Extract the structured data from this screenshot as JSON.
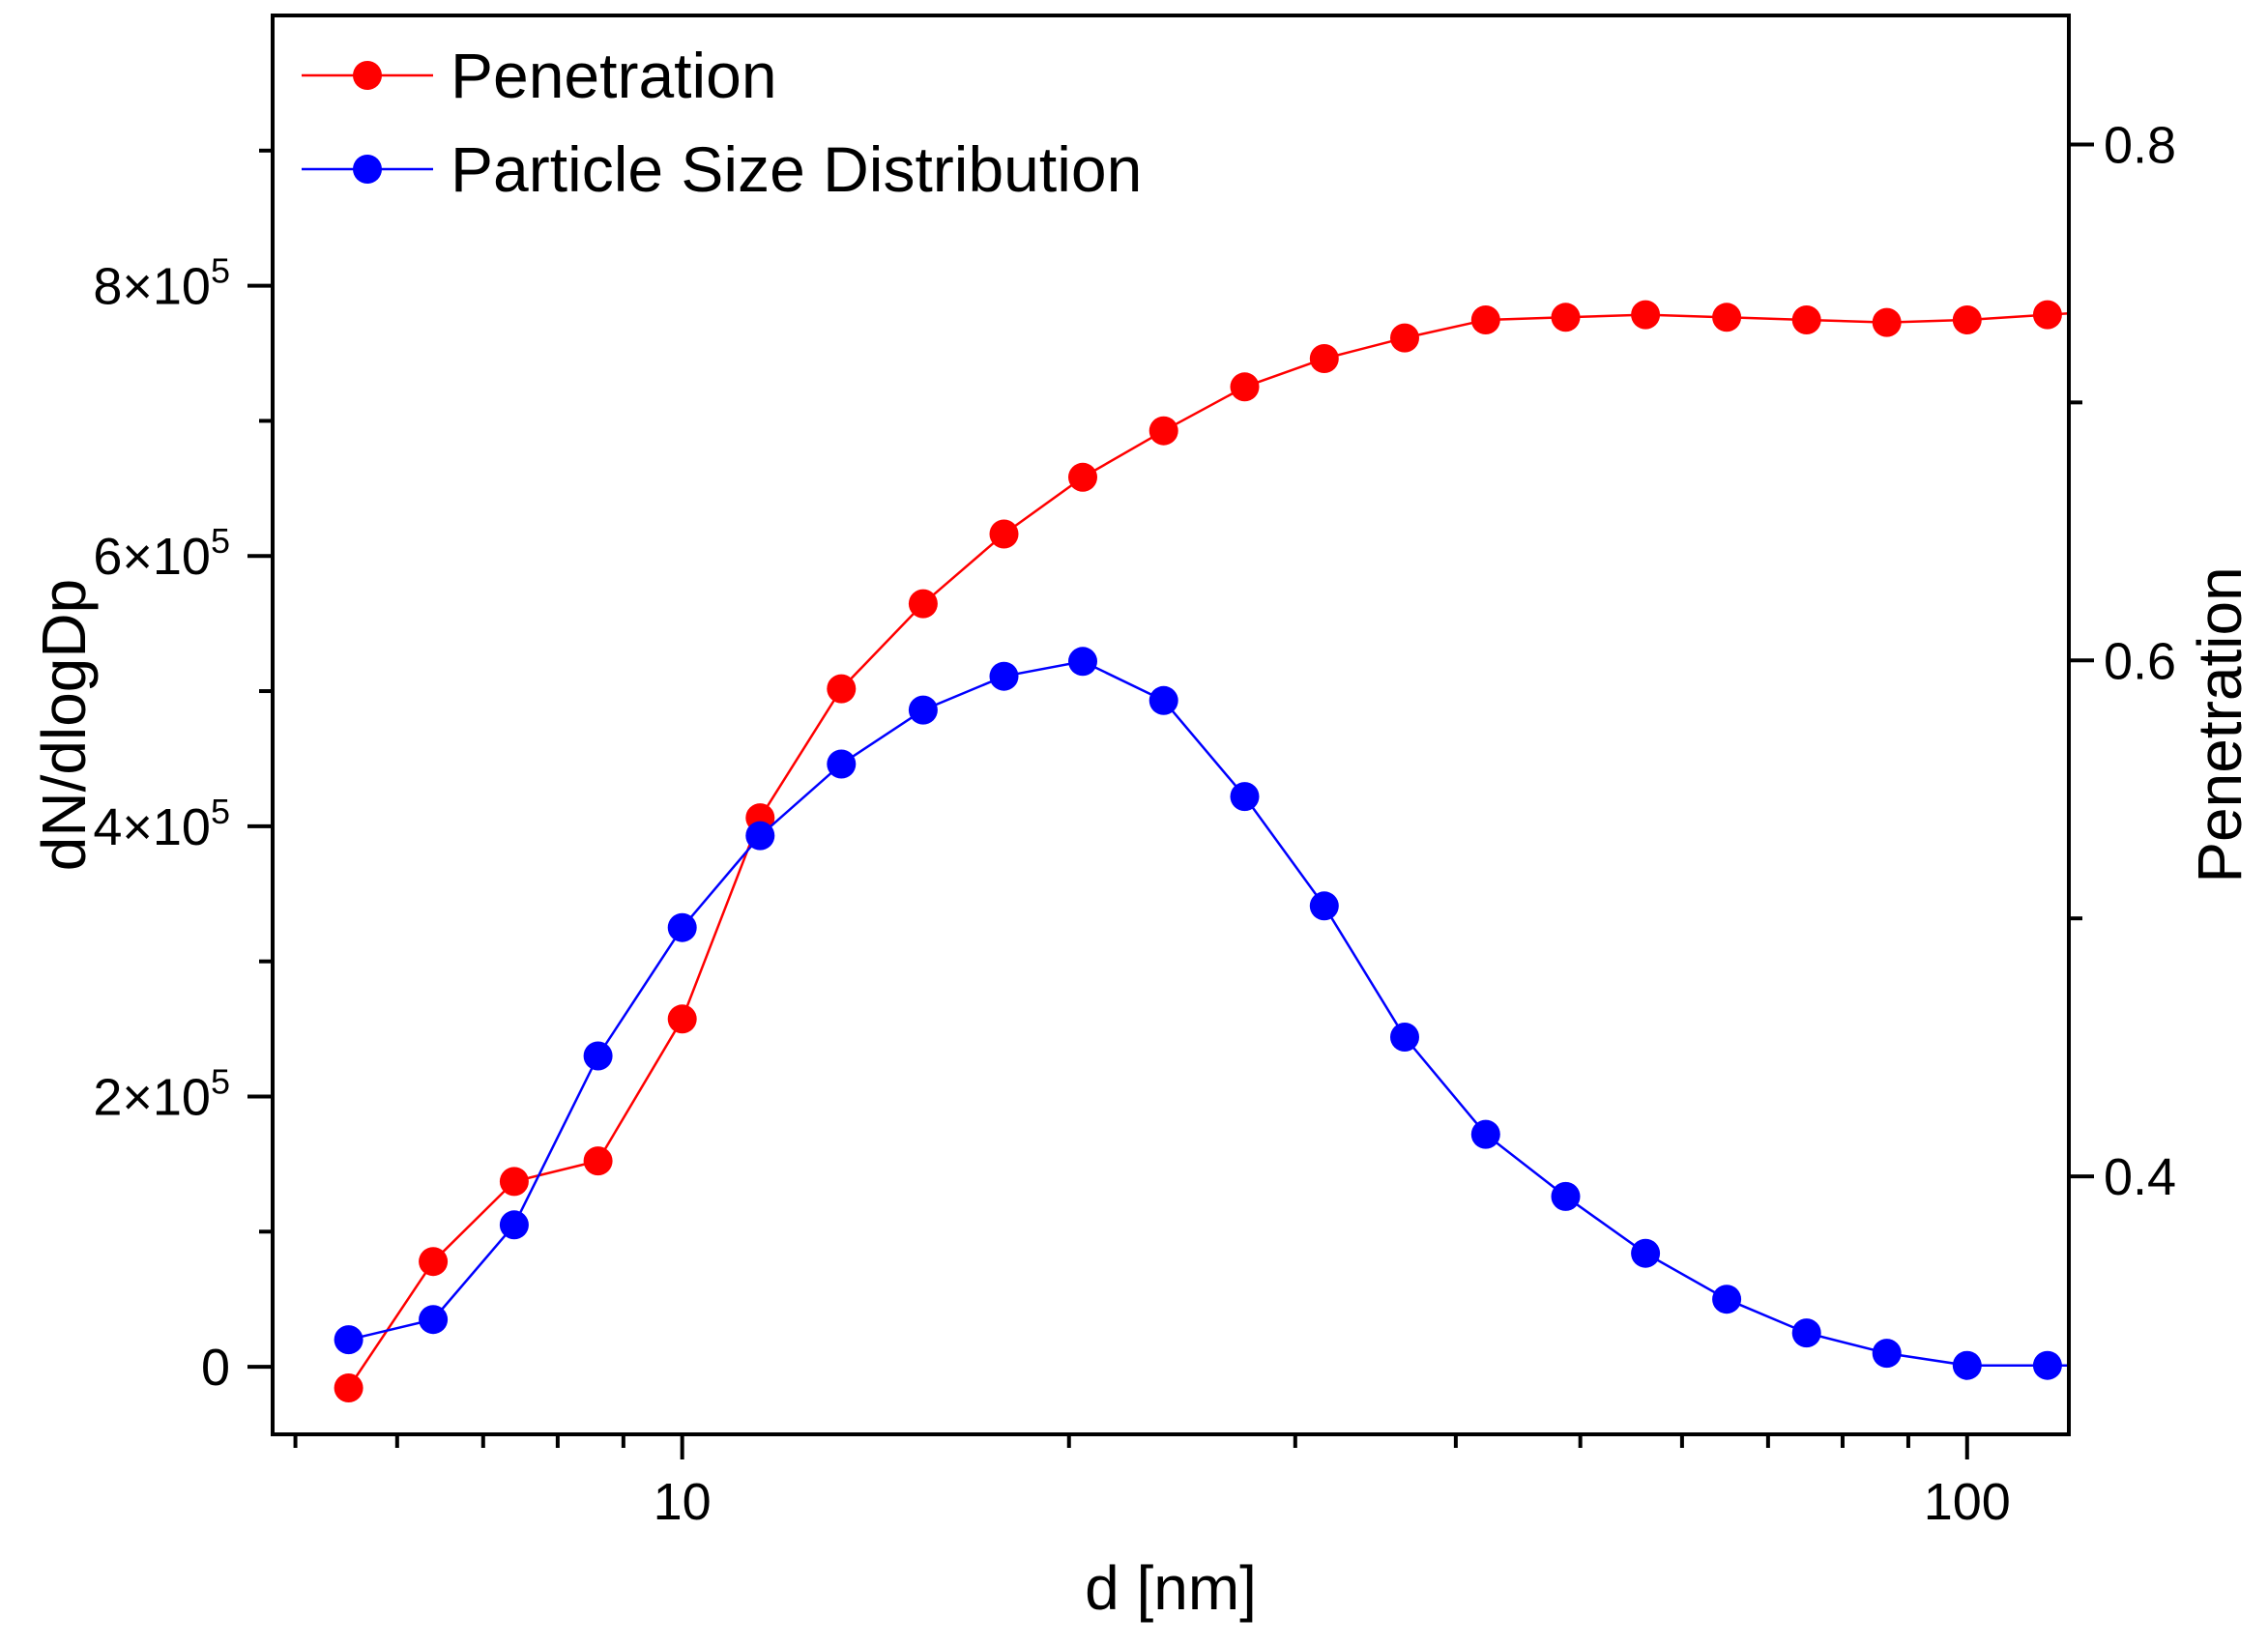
{
  "chart_data": {
    "type": "line",
    "title": "",
    "xlabel": "d [nm]",
    "ylabel_left": "dN/dlogDp",
    "ylabel_right": "Penetration",
    "x_scale": "log",
    "xlim": [
      4.8,
      120
    ],
    "ylim_left": [
      -50000,
      1000000
    ],
    "ylim_right": [
      0.3,
      0.85
    ],
    "x_tick_labels": [
      "10",
      "100"
    ],
    "x_tick_values": [
      10,
      100
    ],
    "y_left_ticks": [
      {
        "value": 0,
        "mantissa": "0",
        "exponent": ""
      },
      {
        "value": 200000,
        "mantissa": "2×10",
        "exponent": "5"
      },
      {
        "value": 400000,
        "mantissa": "4×10",
        "exponent": "5"
      },
      {
        "value": 600000,
        "mantissa": "6×10",
        "exponent": "5"
      },
      {
        "value": 800000,
        "mantissa": "8×10",
        "exponent": "5"
      }
    ],
    "y_left_minor": [
      100000,
      300000,
      500000,
      700000,
      900000
    ],
    "y_right_ticks": [
      {
        "value": 0.4,
        "label": "0.4"
      },
      {
        "value": 0.6,
        "label": "0.6"
      },
      {
        "value": 0.8,
        "label": "0.8"
      }
    ],
    "y_right_minor": [
      0.5,
      0.7
    ],
    "legend_position": "top-left",
    "series": [
      {
        "name": "Penetration",
        "axis": "right",
        "color": "#ff0000",
        "x": [
          5.5,
          6.4,
          7.4,
          8.6,
          10.0,
          11.5,
          13.3,
          15.4,
          17.8,
          20.5,
          23.7,
          27.4,
          31.6,
          36.5,
          42.2,
          48.7,
          56.2,
          65.0,
          75.0,
          86.6,
          100.0,
          115.5
        ],
        "values": [
          0.318,
          0.367,
          0.398,
          0.406,
          0.461,
          0.539,
          0.589,
          0.622,
          0.649,
          0.671,
          0.689,
          0.706,
          0.717,
          0.725,
          0.732,
          0.733,
          0.734,
          0.733,
          0.732,
          0.731,
          0.732,
          0.734
        ]
      },
      {
        "name": "Particle Size Distribution",
        "axis": "left",
        "color": "#0000ff",
        "x": [
          5.5,
          6.4,
          7.4,
          8.6,
          10.0,
          11.5,
          13.3,
          15.4,
          17.8,
          20.5,
          23.7,
          27.4,
          31.6,
          36.5,
          42.2,
          48.7,
          56.2,
          65.0,
          75.0,
          86.6,
          100.0,
          115.5
        ],
        "values": [
          20000,
          35000,
          105000,
          230000,
          325000,
          393000,
          446000,
          486000,
          511000,
          522000,
          493000,
          422000,
          341000,
          244000,
          172000,
          126000,
          84000,
          50000,
          25000,
          10000,
          1000,
          1000
        ]
      }
    ]
  }
}
